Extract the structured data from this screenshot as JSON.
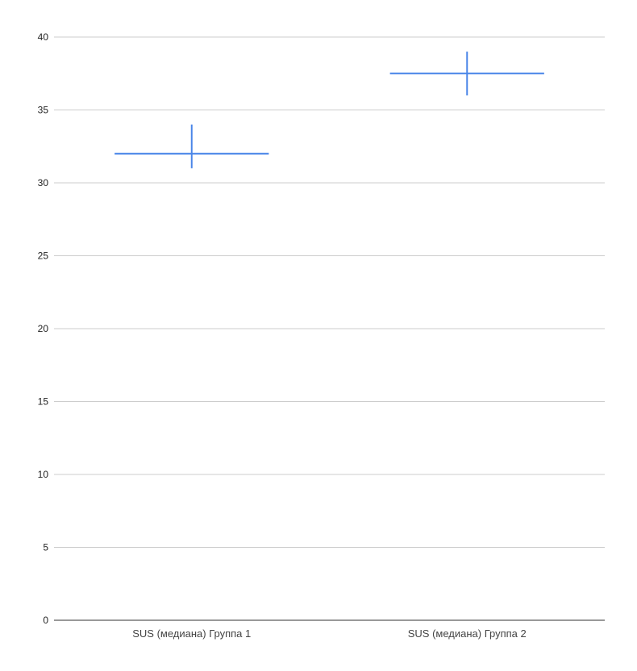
{
  "chart_data": {
    "type": "error-bar",
    "title": "",
    "xlabel": "",
    "ylabel": "",
    "ylim": [
      0,
      40
    ],
    "yticks": [
      "0",
      "5",
      "10",
      "15",
      "20",
      "25",
      "30",
      "35",
      "40"
    ],
    "grid": true,
    "legend": "none",
    "categories": [
      "SUS (медиана) Группа 1",
      "SUS (медиана) Группа 2"
    ],
    "values": [
      32,
      37.5
    ],
    "low": [
      31,
      36
    ],
    "high": [
      34,
      39
    ],
    "color": "#4a86e8"
  }
}
